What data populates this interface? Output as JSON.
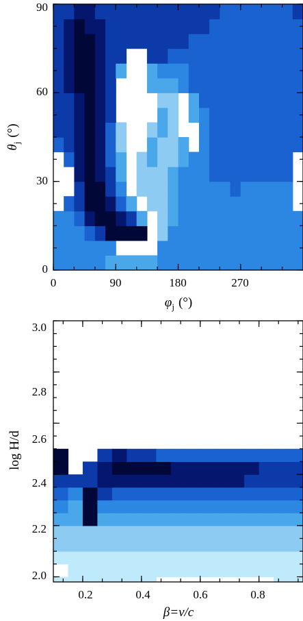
{
  "palette": [
    "#ffffff",
    "#bfeafc",
    "#8ecbf2",
    "#4aa8ea",
    "#2c87e2",
    "#1a62cf",
    "#0c3aa8",
    "#04166e",
    "#010736"
  ],
  "chart_data": [
    {
      "type": "heatmap",
      "title": "",
      "xlabel": "φ",
      "xlabel_sub": "j",
      "xlabel_unit": "(°)",
      "ylabel": "θ",
      "ylabel_sub": "j",
      "ylabel_unit": "(°)",
      "xlim": [
        0,
        360
      ],
      "ylim": [
        0,
        90
      ],
      "xticks": [
        0,
        90,
        180,
        270
      ],
      "yticks": [
        0,
        30,
        60,
        90
      ],
      "xtick_labels": [
        "0",
        "90",
        "180",
        "270"
      ],
      "ytick_labels": [
        "0",
        "30",
        "60",
        "90"
      ],
      "grid": false,
      "x_edges": [
        0,
        15,
        30,
        45,
        60,
        75,
        90,
        105,
        120,
        135,
        150,
        165,
        180,
        195,
        210,
        225,
        240,
        255,
        270,
        285,
        300,
        315,
        330,
        345,
        360
      ],
      "y_edges": [
        0,
        5,
        10,
        15,
        20,
        25,
        30,
        35,
        40,
        45,
        50,
        55,
        60,
        65,
        70,
        75,
        80,
        85,
        90
      ],
      "levels": [
        [
          4,
          4,
          4,
          4,
          4,
          3,
          3,
          3,
          3,
          3,
          4,
          4,
          4,
          4,
          4,
          4,
          4,
          4,
          4,
          4,
          4,
          4,
          4,
          4
        ],
        [
          4,
          4,
          4,
          4,
          4,
          4,
          0,
          0,
          0,
          0,
          4,
          4,
          4,
          4,
          4,
          4,
          4,
          4,
          4,
          4,
          4,
          4,
          4,
          4
        ],
        [
          4,
          4,
          4,
          5,
          6,
          8,
          8,
          8,
          8,
          0,
          2,
          4,
          4,
          4,
          4,
          4,
          4,
          4,
          4,
          4,
          4,
          4,
          4,
          4
        ],
        [
          4,
          4,
          5,
          7,
          8,
          8,
          7,
          6,
          3,
          0,
          2,
          3,
          4,
          4,
          4,
          4,
          4,
          4,
          4,
          4,
          4,
          4,
          4,
          4
        ],
        [
          0,
          5,
          6,
          8,
          8,
          7,
          5,
          3,
          0,
          2,
          2,
          3,
          4,
          4,
          4,
          4,
          4,
          4,
          4,
          4,
          4,
          4,
          4,
          0
        ],
        [
          0,
          0,
          6,
          8,
          8,
          6,
          4,
          0,
          2,
          2,
          2,
          3,
          4,
          4,
          4,
          4,
          4,
          5,
          4,
          4,
          4,
          4,
          4,
          0
        ],
        [
          0,
          0,
          7,
          8,
          7,
          6,
          3,
          0,
          2,
          2,
          2,
          3,
          4,
          4,
          4,
          5,
          5,
          5,
          5,
          5,
          5,
          5,
          5,
          0
        ],
        [
          0,
          5,
          7,
          8,
          7,
          5,
          3,
          0,
          2,
          3,
          2,
          2,
          3,
          4,
          4,
          5,
          5,
          5,
          5,
          5,
          5,
          5,
          5,
          0
        ],
        [
          5,
          6,
          7,
          8,
          7,
          5,
          2,
          0,
          0,
          3,
          2,
          2,
          3,
          0,
          4,
          5,
          5,
          5,
          5,
          5,
          5,
          5,
          5,
          5
        ],
        [
          6,
          6,
          7,
          8,
          7,
          5,
          2,
          0,
          0,
          2,
          3,
          2,
          0,
          0,
          4,
          5,
          5,
          5,
          5,
          5,
          5,
          5,
          5,
          5
        ],
        [
          6,
          6,
          7,
          8,
          7,
          6,
          0,
          0,
          0,
          0,
          3,
          2,
          0,
          3,
          4,
          5,
          5,
          5,
          5,
          5,
          5,
          5,
          5,
          5
        ],
        [
          6,
          6,
          7,
          8,
          7,
          6,
          0,
          0,
          0,
          0,
          2,
          2,
          0,
          3,
          5,
          5,
          5,
          5,
          5,
          5,
          5,
          5,
          5,
          5
        ],
        [
          6,
          7,
          8,
          8,
          7,
          6,
          0,
          0,
          0,
          3,
          3,
          3,
          4,
          5,
          5,
          5,
          5,
          5,
          5,
          5,
          5,
          5,
          5,
          5
        ],
        [
          6,
          7,
          8,
          8,
          7,
          6,
          3,
          0,
          0,
          3,
          4,
          4,
          4,
          5,
          5,
          5,
          5,
          5,
          5,
          5,
          5,
          5,
          5,
          5
        ],
        [
          6,
          7,
          8,
          8,
          7,
          6,
          6,
          0,
          0,
          6,
          6,
          5,
          5,
          5,
          5,
          5,
          5,
          5,
          5,
          5,
          5,
          5,
          5,
          5
        ],
        [
          6,
          7,
          8,
          8,
          7,
          6,
          6,
          6,
          6,
          6,
          6,
          6,
          6,
          5,
          5,
          5,
          5,
          5,
          5,
          5,
          5,
          5,
          5,
          5
        ],
        [
          6,
          7,
          8,
          7,
          7,
          6,
          6,
          6,
          6,
          6,
          6,
          6,
          6,
          6,
          6,
          5,
          5,
          5,
          5,
          5,
          5,
          5,
          5,
          5
        ],
        [
          6,
          6,
          7,
          7,
          6,
          6,
          6,
          6,
          6,
          6,
          6,
          6,
          6,
          6,
          6,
          6,
          5,
          5,
          5,
          5,
          5,
          5,
          5,
          6
        ]
      ]
    },
    {
      "type": "heatmap",
      "title": "",
      "xlabel": "β=v/c",
      "ylabel": "log H/d",
      "xlim": [
        0.1,
        0.95
      ],
      "ylim": [
        1.98,
        3.0
      ],
      "xticks": [
        0.2,
        0.4,
        0.6,
        0.8
      ],
      "yticks": [
        2.0,
        2.2,
        2.4,
        2.6,
        2.8,
        3.0
      ],
      "xtick_labels": [
        "0.2",
        "0.4",
        "0.6",
        "0.8"
      ],
      "ytick_labels": [
        "2.0",
        "2.2",
        "2.4",
        "2.6",
        "2.8",
        "3.0"
      ],
      "grid": false,
      "x_edges": [
        0.1,
        0.15,
        0.2,
        0.25,
        0.3,
        0.35,
        0.4,
        0.45,
        0.5,
        0.55,
        0.6,
        0.65,
        0.7,
        0.75,
        0.8,
        0.85,
        0.9,
        0.95
      ],
      "y_edges": [
        1.98,
        2.0,
        2.05,
        2.1,
        2.15,
        2.2,
        2.25,
        2.3,
        2.35,
        2.4,
        2.45,
        2.5
      ],
      "levels": [
        [
          1,
          1,
          1,
          1,
          1,
          1,
          1,
          0,
          0,
          0,
          0,
          0,
          0,
          0,
          0,
          1,
          1
        ],
        [
          0,
          1,
          1,
          1,
          1,
          1,
          1,
          1,
          1,
          1,
          1,
          1,
          1,
          1,
          1,
          1,
          1
        ],
        [
          1,
          1,
          1,
          1,
          1,
          1,
          1,
          1,
          1,
          1,
          1,
          1,
          1,
          1,
          1,
          1,
          1
        ],
        [
          2,
          2,
          2,
          2,
          2,
          2,
          2,
          2,
          2,
          2,
          2,
          2,
          2,
          2,
          2,
          2,
          2
        ],
        [
          2,
          2,
          2,
          2,
          2,
          2,
          2,
          2,
          2,
          2,
          2,
          2,
          2,
          2,
          2,
          2,
          2
        ],
        [
          3,
          3,
          8,
          3,
          3,
          3,
          3,
          3,
          3,
          3,
          3,
          3,
          3,
          3,
          3,
          3,
          3
        ],
        [
          4,
          3,
          8,
          4,
          4,
          4,
          4,
          4,
          4,
          4,
          4,
          4,
          4,
          4,
          4,
          4,
          4
        ],
        [
          5,
          4,
          8,
          6,
          5,
          5,
          5,
          5,
          5,
          5,
          5,
          5,
          5,
          5,
          5,
          5,
          5
        ],
        [
          6,
          6,
          6,
          7,
          7,
          7,
          7,
          7,
          7,
          7,
          7,
          7,
          7,
          6,
          6,
          6,
          6
        ],
        [
          8,
          0,
          6,
          7,
          8,
          8,
          8,
          8,
          7,
          7,
          7,
          7,
          7,
          7,
          6,
          6,
          6
        ],
        [
          8,
          0,
          0,
          6,
          7,
          6,
          6,
          5,
          5,
          5,
          5,
          5,
          5,
          5,
          5,
          5,
          5
        ]
      ]
    }
  ]
}
